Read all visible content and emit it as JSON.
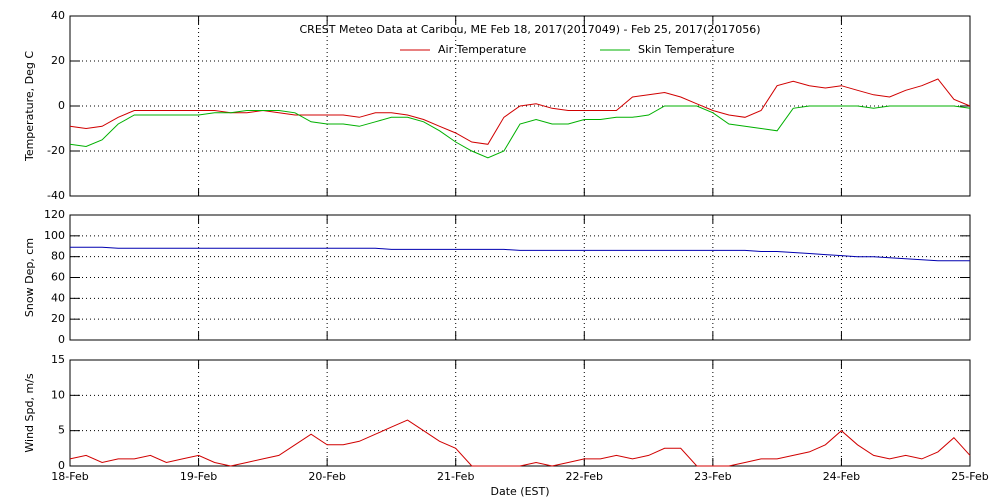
{
  "chart_data": [
    {
      "type": "line",
      "title": "CREST Meteo Data at Caribou, ME   Feb 18, 2017(2017049) - Feb 25, 2017(2017056)",
      "ylabel": "Temperature, Deg C",
      "ylim": [
        -40,
        40
      ],
      "yticks": [
        -40,
        -20,
        0,
        20,
        40
      ],
      "grid": true,
      "legend": "top",
      "series": [
        {
          "name": "Air Temperature",
          "color": "#d00000",
          "values": [
            -9,
            -10,
            -9,
            -5,
            -2,
            -2,
            -2,
            -2,
            -2,
            -2,
            -3,
            -3,
            -2,
            -3,
            -4,
            -4,
            -4,
            -4,
            -5,
            -3,
            -3,
            -4,
            -6,
            -9,
            -12,
            -16,
            -17,
            -5,
            0,
            1,
            -1,
            -2,
            -2,
            -2,
            -2,
            4,
            5,
            6,
            4,
            1,
            -2,
            -4,
            -5,
            -2,
            9,
            11,
            9,
            8,
            9,
            7,
            5,
            4,
            7,
            9,
            12,
            3,
            0
          ]
        },
        {
          "name": "Skin Temperature",
          "color": "#00b000",
          "values": [
            -17,
            -18,
            -15,
            -8,
            -4,
            -4,
            -4,
            -4,
            -4,
            -3,
            -3,
            -2,
            -2,
            -2,
            -3,
            -7,
            -8,
            -8,
            -9,
            -7,
            -5,
            -5,
            -7,
            -11,
            -16,
            -20,
            -23,
            -20,
            -8,
            -6,
            -8,
            -8,
            -6,
            -6,
            -5,
            -5,
            -4,
            0,
            0,
            0,
            -3,
            -8,
            -9,
            -10,
            -11,
            -1,
            0,
            0,
            0,
            0,
            -1,
            0,
            0,
            0,
            0,
            0,
            -1
          ]
        }
      ]
    },
    {
      "type": "line",
      "ylabel": "Snow Dep, cm",
      "ylim": [
        0,
        120
      ],
      "yticks": [
        0,
        20,
        40,
        60,
        80,
        100,
        120
      ],
      "grid": true,
      "series": [
        {
          "name": null,
          "color": "#0000b0",
          "values": [
            89,
            89,
            89,
            88,
            88,
            88,
            88,
            88,
            88,
            88,
            88,
            88,
            88,
            88,
            88,
            88,
            88,
            88,
            88,
            88,
            87,
            87,
            87,
            87,
            87,
            87,
            87,
            87,
            86,
            86,
            86,
            86,
            86,
            86,
            86,
            86,
            86,
            86,
            86,
            86,
            86,
            86,
            86,
            85,
            85,
            84,
            83,
            82,
            81,
            80,
            80,
            79,
            78,
            77,
            76,
            76,
            76
          ]
        }
      ]
    },
    {
      "type": "line",
      "ylabel": "Wind Spd, m/s",
      "xlabel": "Date (EST)",
      "ylim": [
        0,
        15
      ],
      "yticks": [
        0,
        5,
        10,
        15
      ],
      "grid": true,
      "categories": [
        "18-Feb",
        null,
        null,
        null,
        null,
        null,
        null,
        null,
        "19-Feb",
        null,
        null,
        null,
        null,
        null,
        null,
        null,
        "20-Feb",
        null,
        null,
        null,
        null,
        null,
        null,
        null,
        "21-Feb",
        null,
        null,
        null,
        null,
        null,
        null,
        null,
        "22-Feb",
        null,
        null,
        null,
        null,
        null,
        null,
        null,
        "23-Feb",
        null,
        null,
        null,
        null,
        null,
        null,
        null,
        "24-Feb",
        null,
        null,
        null,
        null,
        null,
        null,
        null,
        "25-Feb"
      ],
      "series": [
        {
          "name": null,
          "color": "#d00000",
          "values": [
            1,
            1.5,
            0.5,
            1,
            1,
            1.5,
            0.5,
            1,
            1.5,
            0.5,
            0,
            0.5,
            1,
            1.5,
            3,
            4.5,
            3,
            3,
            3.5,
            4.5,
            5.5,
            6.5,
            5,
            3.5,
            2.5,
            0,
            0,
            0,
            0,
            0.5,
            0,
            0.5,
            1,
            1,
            1.5,
            1,
            1.5,
            2.5,
            2.5,
            0,
            0,
            0,
            0.5,
            1,
            1,
            1.5,
            2,
            3,
            5,
            3,
            1.5,
            1,
            1.5,
            1,
            2,
            4,
            1.5
          ]
        }
      ]
    }
  ]
}
